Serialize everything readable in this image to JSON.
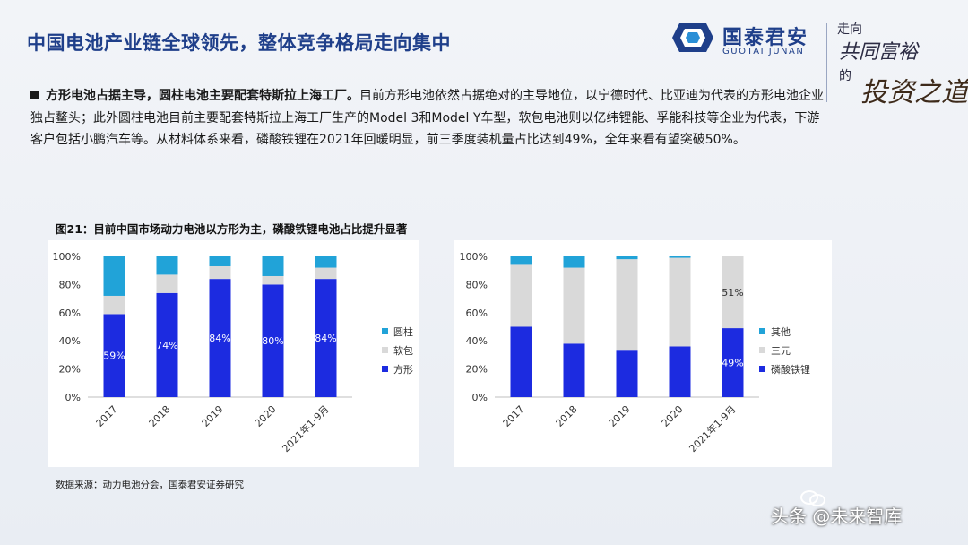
{
  "page_title": "中国电池产业链全球领先，整体竞争格局走向集中",
  "logo": {
    "cn": "国泰君安",
    "en": "GUOTAI JUNAN",
    "icon": "guotai-junan-logo-icon",
    "color": "#1f3f8a"
  },
  "slogan": {
    "line1": "走向",
    "line2": "共同富裕",
    "line3": "的",
    "line4": "投资之道"
  },
  "body": {
    "lead": "方形电池占据主导，圆柱电池主要配套特斯拉上海工厂。",
    "text": "目前方形电池依然占据绝对的主导地位，以宁德时代、比亚迪为代表的方形电池企业独占鳌头；此外圆柱电池目前主要配套特斯拉上海工厂生产的Model 3和Model Y车型，软包电池则以亿纬锂能、孚能科技等企业为代表，下游客户包括小鹏汽车等。从材料体系来看，磷酸铁锂在2021年回暖明显，前三季度装机量占比达到49%，全年来看有望突破50%。"
  },
  "figure_title": "图21：目前中国市场动力电池以方形为主，磷酸铁锂电池占比提升显著",
  "source": "数据来源：动力电池分会，国泰君安证券研究",
  "watermark": "头条 @未来智库",
  "chart_data": [
    {
      "type": "bar",
      "stacked": true,
      "categories": [
        "2017",
        "2018",
        "2019",
        "2020",
        "2021年1-9月"
      ],
      "ylim": [
        0,
        100
      ],
      "yticks": [
        "0%",
        "20%",
        "40%",
        "60%",
        "80%",
        "100%"
      ],
      "series": [
        {
          "name": "方形",
          "values": [
            59,
            74,
            84,
            80,
            84
          ],
          "color": "#1c2be0",
          "labels": [
            "59%",
            "74%",
            "84%",
            "80%",
            "84%"
          ]
        },
        {
          "name": "软包",
          "values": [
            13,
            13,
            9,
            6,
            8
          ],
          "color": "#d9d9d9"
        },
        {
          "name": "圆柱",
          "values": [
            28,
            13,
            7,
            14,
            8
          ],
          "color": "#21a3d8"
        }
      ],
      "legend": "right",
      "grid": false
    },
    {
      "type": "bar",
      "stacked": true,
      "categories": [
        "2017",
        "2018",
        "2019",
        "2020",
        "2021年1-9月"
      ],
      "ylim": [
        0,
        100
      ],
      "yticks": [
        "0%",
        "20%",
        "40%",
        "60%",
        "80%",
        "100%"
      ],
      "series": [
        {
          "name": "磷酸铁锂",
          "values": [
            50,
            38,
            33,
            36,
            49
          ],
          "color": "#1c2be0",
          "labels": [
            "",
            "",
            "",
            "",
            "49%"
          ]
        },
        {
          "name": "三元",
          "values": [
            44,
            54,
            65,
            63,
            51
          ],
          "color": "#d9d9d9",
          "labels": [
            "",
            "",
            "",
            "",
            "51%"
          ]
        },
        {
          "name": "其他",
          "values": [
            6,
            8,
            2,
            1,
            0
          ],
          "color": "#21a3d8"
        }
      ],
      "legend": "right",
      "grid": false
    }
  ]
}
